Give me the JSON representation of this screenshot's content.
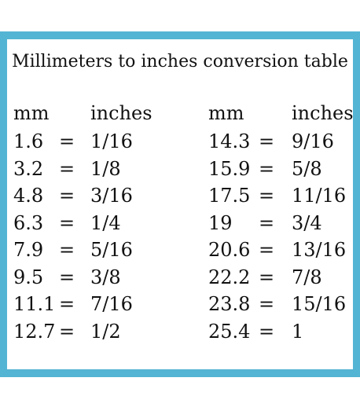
{
  "title": "Millimeters to inches conversion table",
  "headers": {
    "left_mm": "mm",
    "left_in": "inches",
    "right_mm": "mm",
    "right_in": "inches"
  },
  "equals": "=",
  "left_rows": [
    {
      "mm": "1.6",
      "inches": "1/16"
    },
    {
      "mm": "3.2",
      "inches": "1/8"
    },
    {
      "mm": "4.8",
      "inches": "3/16"
    },
    {
      "mm": "6.3",
      "inches": "1/4"
    },
    {
      "mm": "7.9",
      "inches": "5/16"
    },
    {
      "mm": "9.5",
      "inches": "3/8"
    },
    {
      "mm": "11.1",
      "inches": "7/16"
    },
    {
      "mm": "12.7",
      "inches": "1/2"
    }
  ],
  "right_rows": [
    {
      "mm": "14.3",
      "inches": "9/16"
    },
    {
      "mm": "15.9",
      "inches": "5/8"
    },
    {
      "mm": "17.5",
      "inches": "11/16"
    },
    {
      "mm": "19",
      "inches": "3/4"
    },
    {
      "mm": "20.6",
      "inches": "13/16"
    },
    {
      "mm": "22.2",
      "inches": "7/8"
    },
    {
      "mm": "23.8",
      "inches": "15/16"
    },
    {
      "mm": "25.4",
      "inches": "1"
    }
  ],
  "colors": {
    "frame": "#54b4d3",
    "text": "#111111"
  }
}
